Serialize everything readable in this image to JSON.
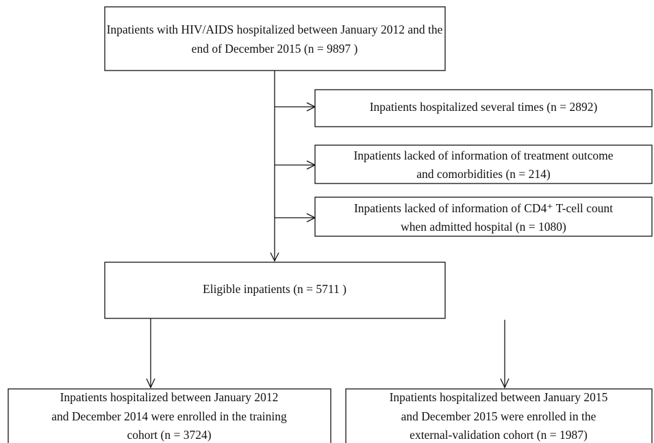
{
  "nodes": [
    {
      "lines": [
        "Inpatients with HIV/AIDS hospitalized between January 2012 and the",
        "end of December 2015 (n = 9897 )"
      ]
    },
    {
      "lines": [
        "Inpatients hospitalized several times (n = 2892)"
      ]
    },
    {
      "lines": [
        "Inpatients lacked of information of treatment outcome",
        "and comorbidities   (n = 214)"
      ]
    },
    {
      "lines": [
        "Inpatients lacked of information of CD4⁺ T-cell count",
        "when admitted hospital   (n = 1080)"
      ]
    },
    {
      "lines": [
        "Eligible inpatients (n = 5711 )"
      ]
    },
    {
      "lines": [
        "Inpatients  hospitalized between January 2012",
        "and December 2014 were enrolled in the training",
        "cohort (n = 3724)"
      ]
    },
    {
      "lines": [
        "Inpatients  hospitalized between January 2015",
        "and December 2015 were enrolled in the",
        "external-validation cohort (n = 1987)"
      ]
    }
  ]
}
